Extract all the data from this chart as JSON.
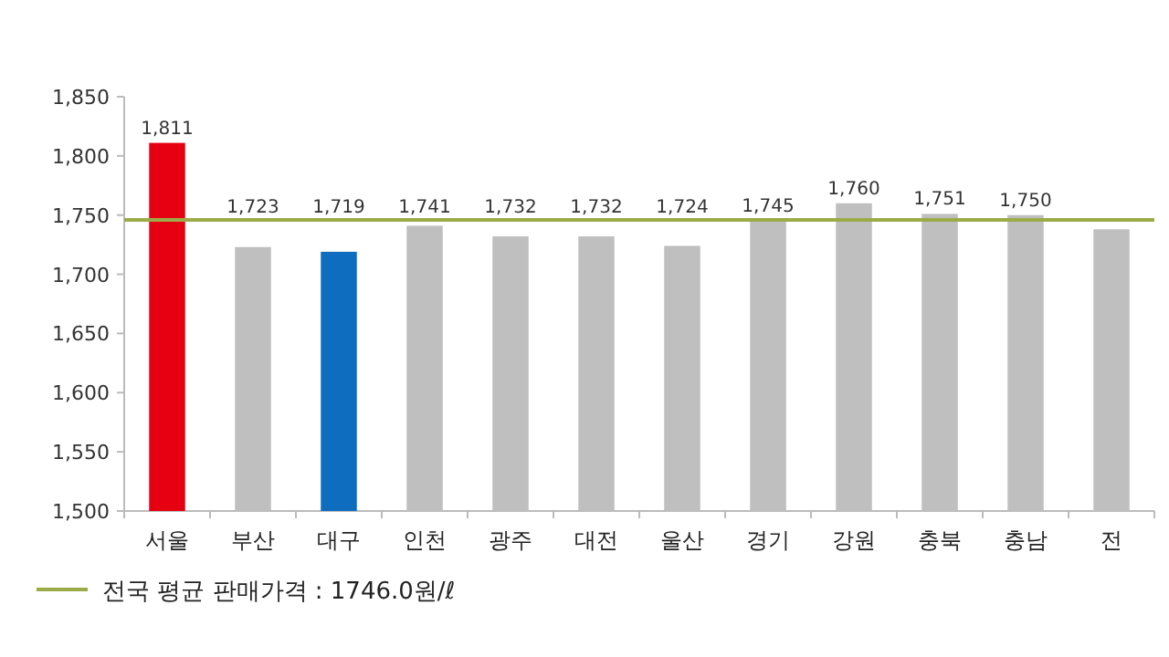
{
  "chart_data": {
    "type": "bar",
    "categories": [
      "서울",
      "부산",
      "대구",
      "인천",
      "광주",
      "대전",
      "울산",
      "경기",
      "강원",
      "충북",
      "충남",
      "전"
    ],
    "values": [
      1811,
      1723,
      1719,
      1741,
      1732,
      1732,
      1724,
      1745,
      1760,
      1751,
      1750,
      1738
    ],
    "colors": [
      "#e60012",
      "#bfbfbf",
      "#0f6dbf",
      "#bfbfbf",
      "#bfbfbf",
      "#bfbfbf",
      "#bfbfbf",
      "#bfbfbf",
      "#bfbfbf",
      "#bfbfbf",
      "#bfbfbf",
      "#bfbfbf"
    ],
    "value_labels": [
      "1,811",
      "1,723",
      "1,719",
      "1,741",
      "1,732",
      "1,732",
      "1,724",
      "1,745",
      "1,760",
      "1,751",
      "1,750",
      null
    ],
    "ylim": [
      1500,
      1850
    ],
    "yticks": [
      {
        "value": 1500,
        "label": "1,500"
      },
      {
        "value": 1550,
        "label": "1,550"
      },
      {
        "value": 1600,
        "label": "1,600"
      },
      {
        "value": 1650,
        "label": "1,650"
      },
      {
        "value": 1700,
        "label": "1,700"
      },
      {
        "value": 1750,
        "label": "1,750"
      },
      {
        "value": 1800,
        "label": "1,800"
      },
      {
        "value": 1850,
        "label": "1,850"
      }
    ],
    "ref_lines": [
      {
        "axis": "y",
        "value": 1746,
        "label": "전국 평균 판매가격 : 1746.0원/ℓ",
        "color": "#9bab47"
      }
    ],
    "legend": "bottom"
  }
}
